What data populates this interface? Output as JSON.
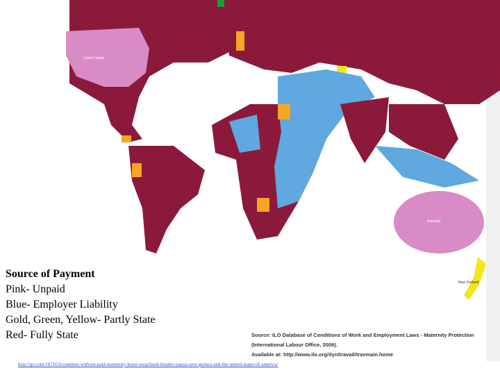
{
  "legend": {
    "title": "Source of Payment",
    "items": [
      "Pink- Unpaid",
      "Blue- Employer Liability",
      "Gold, Green, Yellow- Partly State",
      "Red- Fully State"
    ]
  },
  "source": {
    "citation": "Source: ILO Database of Conditions of Work and Employment Laws - Maternity Protection (International Labour Office, 2009).",
    "available": "Available at: http://www.ilo.org/dyn/travail/travmain.home"
  },
  "link": "http://qz.com/167163/countries-without-paid-maternity-leave-swaziland-lesotho-papua-new-guinea-and-the-united-states-of-america/",
  "map_labels": [
    "United States",
    "Australia",
    "New Zealand"
  ]
}
